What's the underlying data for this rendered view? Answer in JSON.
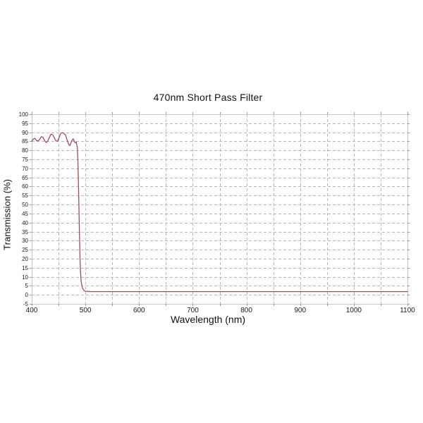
{
  "title": "470nm Short Pass Filter",
  "chart_data": {
    "type": "line",
    "title": "470nm Short Pass Filter",
    "xlabel": "Wavelength (nm)",
    "ylabel": "Transmission (%)",
    "xlim": [
      400,
      1100
    ],
    "ylim": [
      -5,
      100
    ],
    "x_major_ticks": [
      400,
      500,
      600,
      700,
      800,
      900,
      1000,
      1100
    ],
    "x_minor_ticks": [
      400,
      450,
      500,
      550,
      600,
      650,
      700,
      750,
      800,
      850,
      900,
      950,
      1000,
      1050,
      1100
    ],
    "y_ticks": [
      100,
      95,
      90,
      85,
      80,
      75,
      70,
      65,
      60,
      55,
      50,
      45,
      40,
      35,
      30,
      25,
      20,
      15,
      10,
      5,
      0,
      -5
    ],
    "grid": "dashed-both-axes",
    "legend": "none",
    "series": [
      {
        "name": "transmission",
        "x": [
          400,
          403,
          406,
          409,
          412,
          415,
          418,
          421,
          424,
          427,
          430,
          433,
          436,
          439,
          442,
          445,
          448,
          451,
          454,
          457,
          460,
          463,
          466,
          469,
          471,
          474,
          477,
          479,
          481,
          483,
          485,
          486,
          487,
          488,
          489,
          490,
          491,
          492,
          494,
          496,
          498,
          500,
          505,
          510,
          550,
          600,
          650,
          700,
          750,
          800,
          850,
          900,
          950,
          1000,
          1050,
          1100
        ],
        "y": [
          85.0,
          86.3,
          86.6,
          85.4,
          85.2,
          86.2,
          87.6,
          87.2,
          85.4,
          84.3,
          85.2,
          87.2,
          89.0,
          88.6,
          87.0,
          85.2,
          85.0,
          87.0,
          89.4,
          89.8,
          89.4,
          88.4,
          85.6,
          83.2,
          82.6,
          84.9,
          86.4,
          85.3,
          84.1,
          84.6,
          81.5,
          74.0,
          63.0,
          48.0,
          32.0,
          20.0,
          12.0,
          7.5,
          4.2,
          2.9,
          2.3,
          2.0,
          1.9,
          1.8,
          1.8,
          1.8,
          1.8,
          1.8,
          1.8,
          1.8,
          1.8,
          1.8,
          1.8,
          1.8,
          1.8,
          1.8
        ]
      }
    ]
  },
  "colors": {
    "line": "#a14f5e",
    "grid": "#b8b8b8",
    "tick": "#999999",
    "frame": "#c8c8c8",
    "tick_label": "#1a1a1a",
    "background": "#ffffff"
  }
}
